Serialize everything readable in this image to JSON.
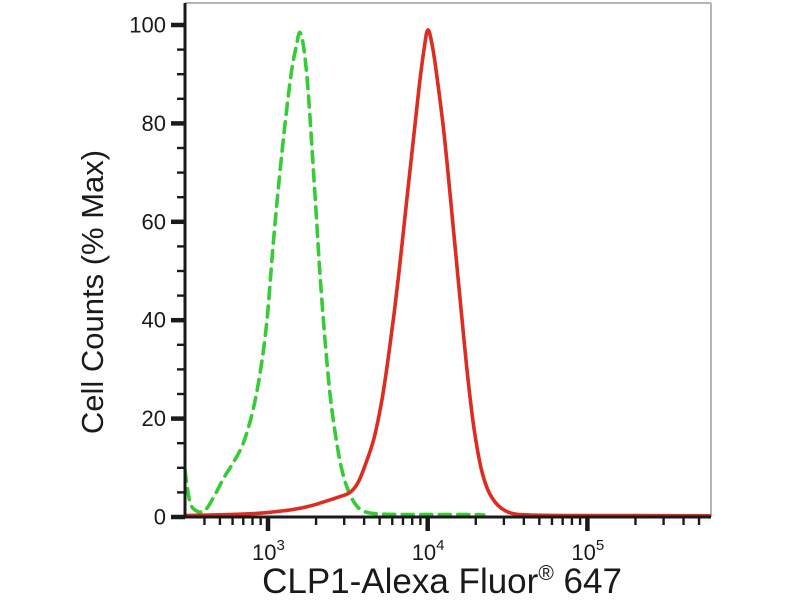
{
  "page": {
    "background": "#ffffff",
    "frame_color": "#b4b4b4",
    "axis_color": "#1a1a1a"
  },
  "chart_data": {
    "type": "line",
    "chart_kind": "flow-cytometry-histogram",
    "title": "",
    "xlabel": "CLP1-Alexa Fluor® 647",
    "ylabel": "Cell Counts (% Max)",
    "x_scale": "log10",
    "grid": "off",
    "legend": "none",
    "x_axis": {
      "min": 302,
      "max": 590000,
      "major_ticks": [
        1000,
        10000,
        100000
      ],
      "major_tick_labels": [
        "10^3",
        "10^4",
        "10^5"
      ],
      "minor_ticks": [
        400,
        500,
        600,
        700,
        800,
        900,
        2000,
        3000,
        4000,
        5000,
        6000,
        7000,
        8000,
        9000,
        20000,
        30000,
        40000,
        50000,
        60000,
        70000,
        80000,
        90000,
        200000,
        300000,
        400000,
        500000
      ]
    },
    "y_axis": {
      "min": 0,
      "max": 100,
      "major_ticks": [
        0,
        20,
        40,
        60,
        80,
        100
      ],
      "major_tick_labels": [
        "0",
        "20",
        "40",
        "60",
        "80",
        "100"
      ],
      "minor_tick_step": 5
    },
    "series": [
      {
        "name": "green-dashed",
        "style": "dashed",
        "color": "#35cc35",
        "peak": {
          "x": 1585,
          "y": 98.5
        },
        "points": [
          [
            302,
            9.5
          ],
          [
            325,
            3
          ],
          [
            359,
            1.2
          ],
          [
            405,
            1.4
          ],
          [
            465,
            4.5
          ],
          [
            530,
            8
          ],
          [
            605,
            11
          ],
          [
            700,
            15
          ],
          [
            795,
            21
          ],
          [
            890,
            29
          ],
          [
            985,
            40
          ],
          [
            1075,
            55
          ],
          [
            1170,
            68
          ],
          [
            1280,
            80
          ],
          [
            1395,
            90
          ],
          [
            1500,
            95.5
          ],
          [
            1585,
            98.5
          ],
          [
            1680,
            95
          ],
          [
            1780,
            87
          ],
          [
            1885,
            75
          ],
          [
            2000,
            62
          ],
          [
            2120,
            49
          ],
          [
            2275,
            36
          ],
          [
            2445,
            25
          ],
          [
            2665,
            16
          ],
          [
            2905,
            9.5
          ],
          [
            3215,
            5
          ],
          [
            3605,
            2.2
          ],
          [
            4110,
            1
          ],
          [
            5020,
            0.6
          ],
          [
            7000,
            0.5
          ],
          [
            10000,
            0.5
          ],
          [
            14000,
            0.5
          ],
          [
            19000,
            0.5
          ],
          [
            22500,
            0.4
          ]
        ]
      },
      {
        "name": "red-solid",
        "style": "solid",
        "color": "#dd2c20",
        "peak": {
          "x": 10050,
          "y": 99
        },
        "points": [
          [
            302,
            0.3
          ],
          [
            580,
            0.5
          ],
          [
            915,
            0.8
          ],
          [
            1280,
            1.3
          ],
          [
            1600,
            1.8
          ],
          [
            1970,
            2.5
          ],
          [
            2340,
            3.3
          ],
          [
            2740,
            4
          ],
          [
            3260,
            5
          ],
          [
            3660,
            7
          ],
          [
            4110,
            11
          ],
          [
            4610,
            16
          ],
          [
            5180,
            24
          ],
          [
            5810,
            35
          ],
          [
            6520,
            48
          ],
          [
            7310,
            63
          ],
          [
            8090,
            76
          ],
          [
            8810,
            87
          ],
          [
            9480,
            95
          ],
          [
            10050,
            99
          ],
          [
            10790,
            95
          ],
          [
            11590,
            88
          ],
          [
            12650,
            78
          ],
          [
            13770,
            66
          ],
          [
            15030,
            53
          ],
          [
            16410,
            40
          ],
          [
            17870,
            28
          ],
          [
            19500,
            18
          ],
          [
            21580,
            10
          ],
          [
            23820,
            5.5
          ],
          [
            26790,
            2.8
          ],
          [
            30480,
            1.3
          ],
          [
            35240,
            0.6
          ],
          [
            43750,
            0.4
          ],
          [
            80000,
            0.3
          ],
          [
            200000,
            0.3
          ],
          [
            590000,
            0.25
          ]
        ]
      }
    ]
  }
}
